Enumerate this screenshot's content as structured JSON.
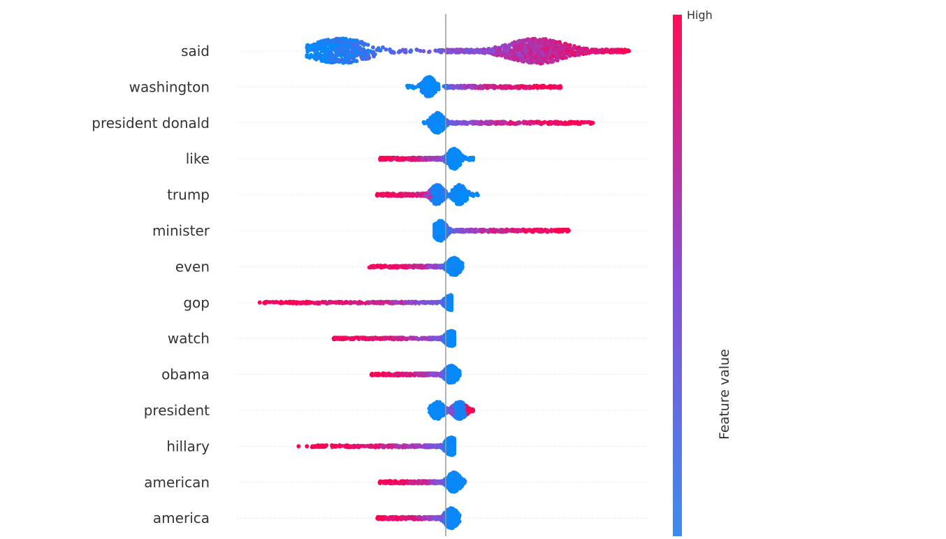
{
  "chart_data": {
    "type": "scatter",
    "subtype": "beeswarm",
    "title": "",
    "xlabel": "",
    "ylabel": "",
    "grid": false,
    "baseline_x": 0,
    "xlim": [
      -0.75,
      0.73
    ],
    "features": [
      {
        "name": "said",
        "neg_range": [
          -0.5,
          0.0
        ],
        "pos_range": [
          0.0,
          0.66
        ],
        "high_side": "positive",
        "outliers": [
          0.66
        ],
        "density_peaks": [
          -0.38,
          0.33
        ],
        "max_height": 1.0
      },
      {
        "name": "washington",
        "neg_range": [
          -0.14,
          0.0
        ],
        "pos_range": [
          0.0,
          0.42
        ],
        "high_side": "positive",
        "outliers": [],
        "density_peaks": [
          -0.06
        ],
        "max_height": 0.8
      },
      {
        "name": "president donald",
        "neg_range": [
          -0.08,
          0.0
        ],
        "pos_range": [
          0.03,
          0.53
        ],
        "high_side": "positive",
        "outliers": [
          0.53
        ],
        "density_peaks": [
          -0.03
        ],
        "max_height": 0.8
      },
      {
        "name": "like",
        "neg_range": [
          -0.24,
          0.0
        ],
        "pos_range": [
          0.0,
          0.1
        ],
        "high_side": "negative",
        "outliers": [],
        "density_peaks": [
          0.03
        ],
        "max_height": 0.8
      },
      {
        "name": "trump",
        "neg_range": [
          -0.25,
          0.0
        ],
        "pos_range": [
          0.0,
          0.12
        ],
        "high_side": "negative",
        "outliers": [
          -0.24
        ],
        "density_peaks": [
          -0.03,
          0.05
        ],
        "max_height": 0.8
      },
      {
        "name": "minister",
        "neg_range": [
          -0.04,
          0.0
        ],
        "pos_range": [
          0.03,
          0.45
        ],
        "high_side": "positive",
        "outliers": [],
        "density_peaks": [
          -0.02
        ],
        "max_height": 0.8
      },
      {
        "name": "even",
        "neg_range": [
          -0.28,
          0.0
        ],
        "pos_range": [
          0.0,
          0.06
        ],
        "high_side": "negative",
        "outliers": [],
        "density_peaks": [
          0.03
        ],
        "max_height": 0.7
      },
      {
        "name": "gop",
        "neg_range": [
          -0.66,
          0.0
        ],
        "pos_range": [
          0.0,
          0.02
        ],
        "high_side": "negative",
        "outliers": [
          -0.67,
          -0.65
        ],
        "density_peaks": [
          0.02
        ],
        "max_height": 0.6
      },
      {
        "name": "watch",
        "neg_range": [
          -0.41,
          0.0
        ],
        "pos_range": [
          0.0,
          0.03
        ],
        "high_side": "negative",
        "outliers": [],
        "density_peaks": [
          0.02
        ],
        "max_height": 0.6
      },
      {
        "name": "obama",
        "neg_range": [
          -0.27,
          0.0
        ],
        "pos_range": [
          0.0,
          0.05
        ],
        "high_side": "negative",
        "outliers": [],
        "density_peaks": [
          0.02
        ],
        "max_height": 0.7
      },
      {
        "name": "president",
        "neg_range": [
          -0.06,
          0.0
        ],
        "pos_range": [
          0.0,
          0.1
        ],
        "high_side": "positive",
        "outliers": [],
        "density_peaks": [
          -0.03,
          0.05
        ],
        "max_height": 0.7
      },
      {
        "name": "hillary",
        "neg_range": [
          -0.49,
          0.0
        ],
        "pos_range": [
          0.0,
          0.03
        ],
        "high_side": "negative",
        "outliers": [
          -0.53,
          -0.5,
          -0.48
        ],
        "density_peaks": [
          0.02
        ],
        "max_height": 0.7
      },
      {
        "name": "american",
        "neg_range": [
          -0.24,
          0.0
        ],
        "pos_range": [
          0.0,
          0.07
        ],
        "high_side": "negative",
        "outliers": [],
        "density_peaks": [
          0.03
        ],
        "max_height": 0.8
      },
      {
        "name": "america",
        "neg_range": [
          -0.25,
          0.0
        ],
        "pos_range": [
          0.0,
          0.05
        ],
        "high_side": "negative",
        "outliers": [],
        "density_peaks": [
          0.02
        ],
        "max_height": 0.8
      }
    ],
    "colorbar": {
      "label": "Feature value",
      "high_label": "High",
      "low_color": "#3b8cf0",
      "mid_color": "#8a4cd6",
      "high_color": "#ff0d57"
    },
    "colors": {
      "low": "#008bfb",
      "mid": "#8a4cd6",
      "high": "#ff0051",
      "axis": "#999999",
      "label": "#333333",
      "gridline": "#cccccc"
    }
  }
}
